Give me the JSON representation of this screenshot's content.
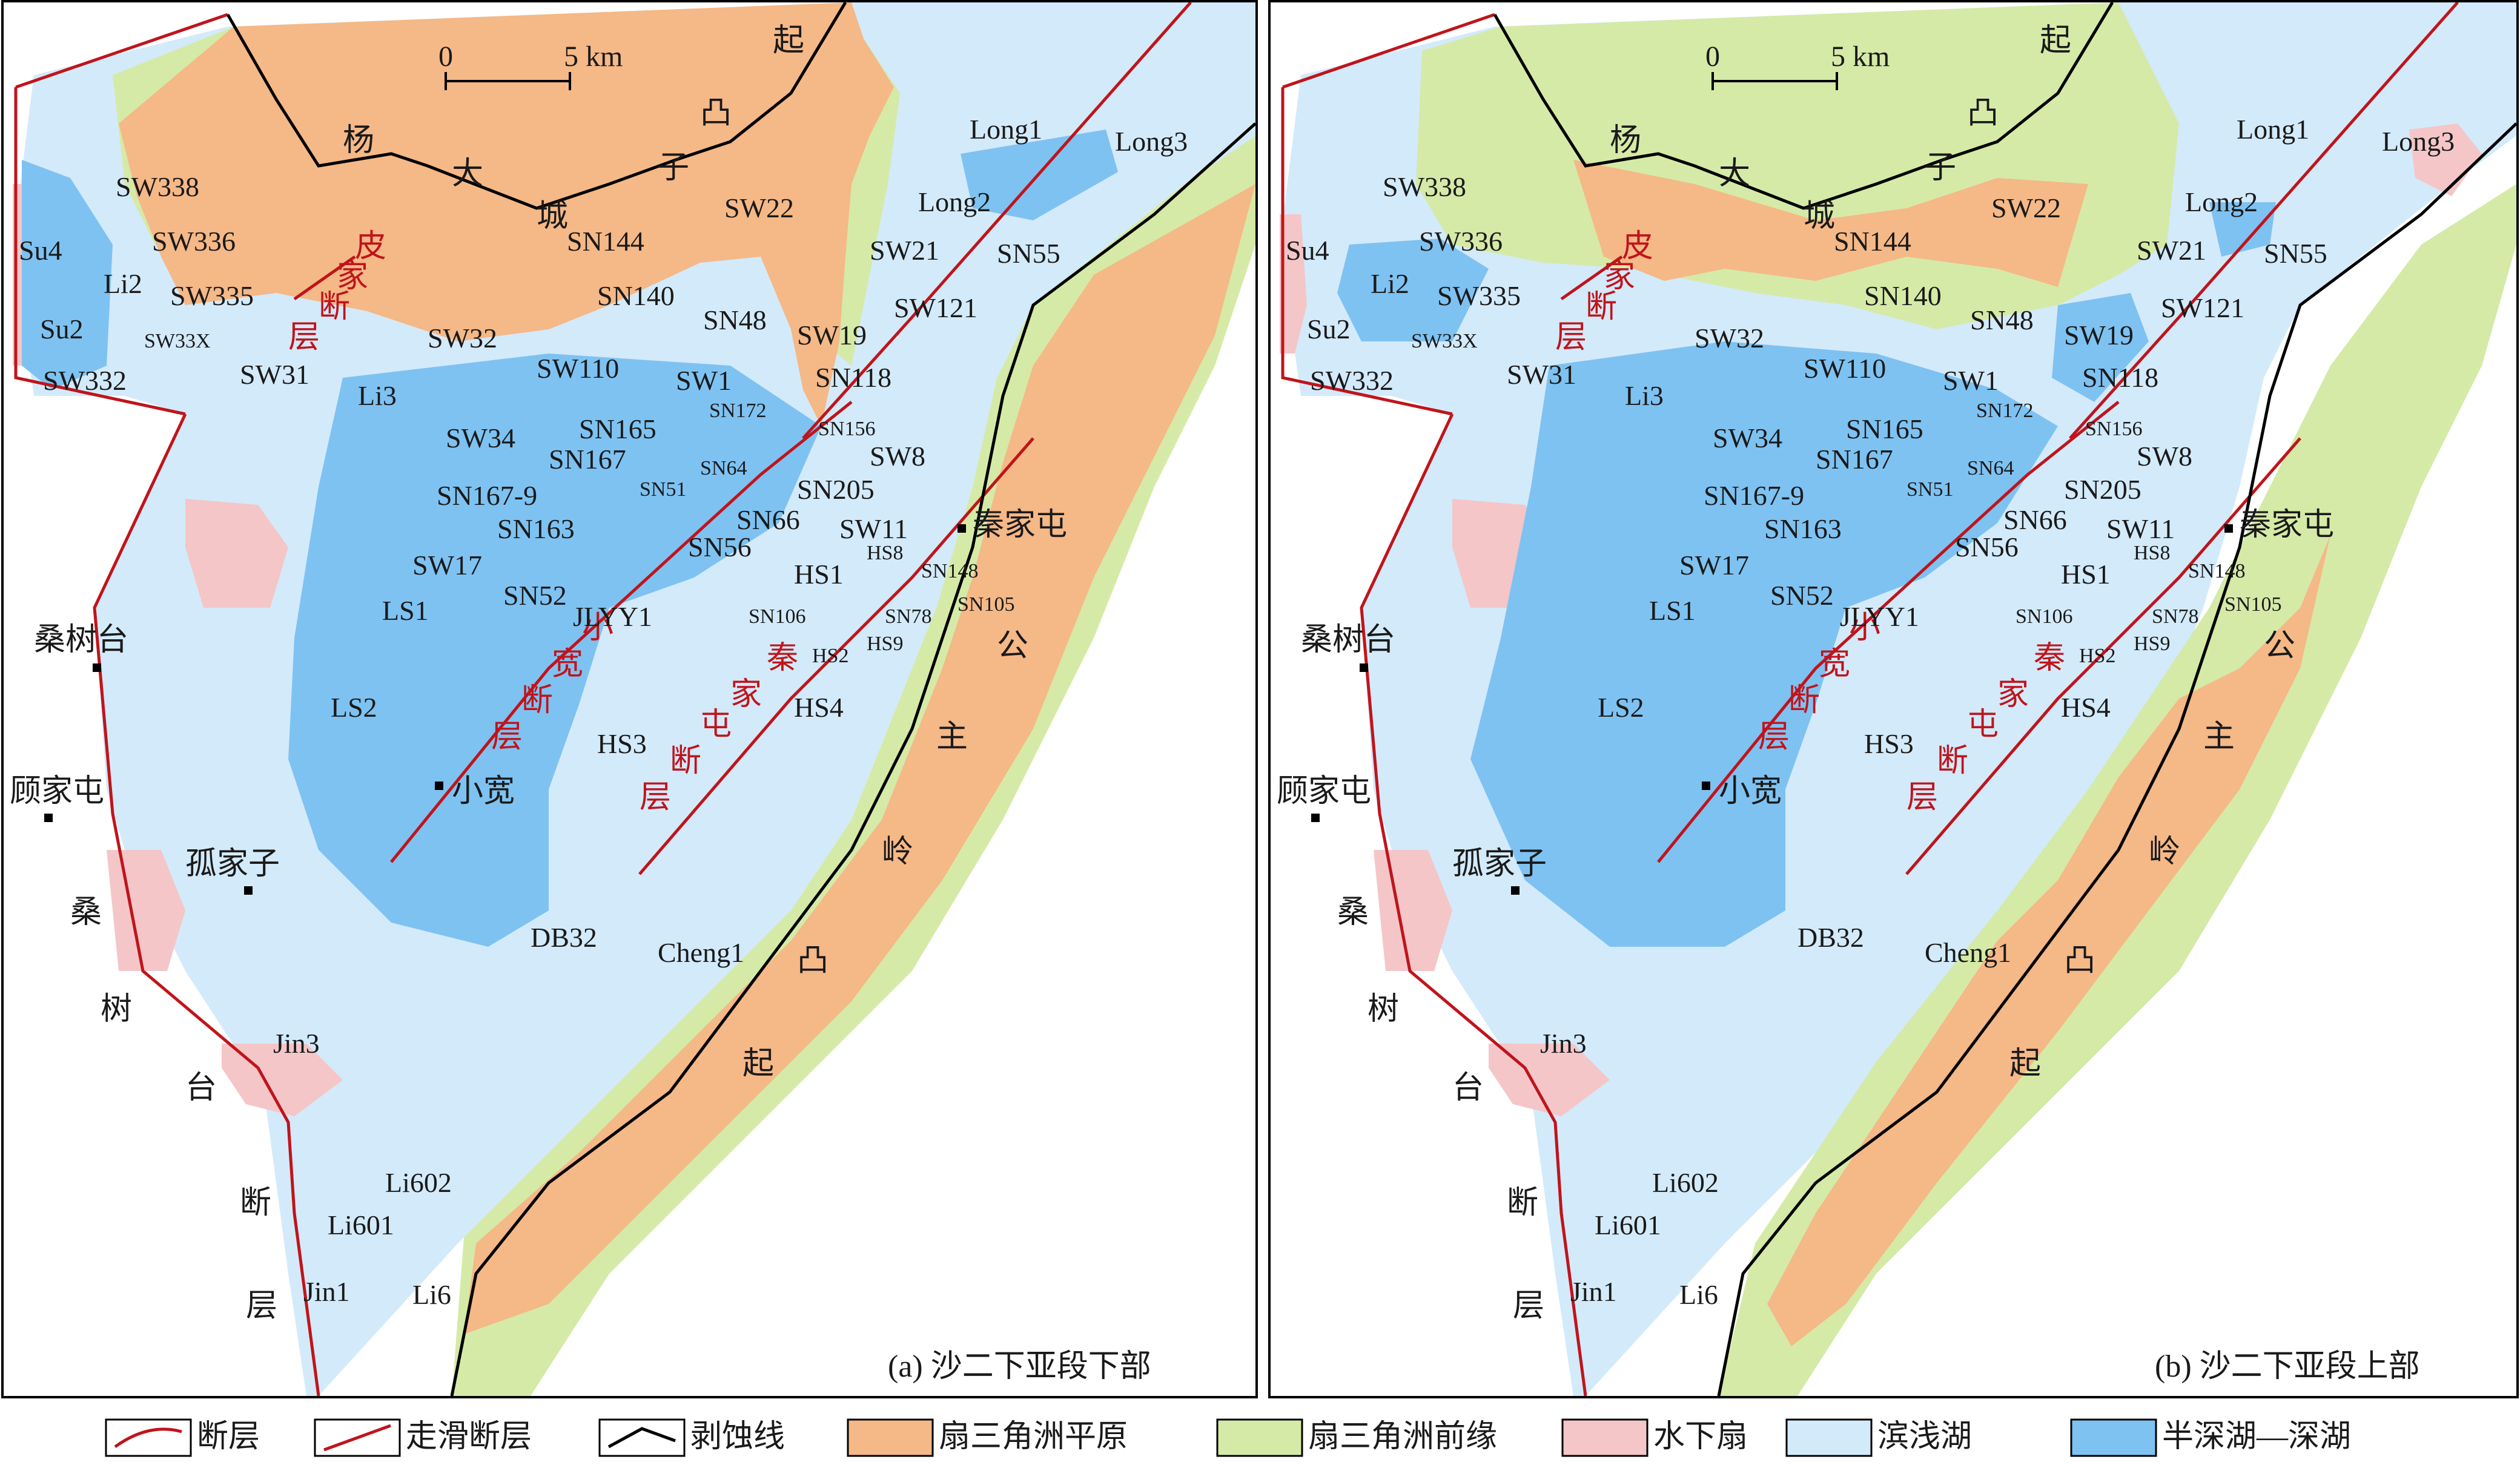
{
  "scale_bar": {
    "zero": "0",
    "five": "5 km"
  },
  "panels": [
    {
      "id": "a",
      "caption": "(a) 沙二下亚段下部"
    },
    {
      "id": "b",
      "caption": "(b) 沙二下亚段上部"
    }
  ],
  "uplift_labels": {
    "yangdacheng": [
      "杨",
      "大",
      "城",
      "子",
      "凸",
      "起"
    ],
    "gongzhu": [
      "公",
      "主",
      "岭",
      "凸",
      "起"
    ]
  },
  "fault_labels": {
    "pijia": [
      "皮",
      "家",
      "断",
      "层"
    ],
    "xiaokuan": [
      "小",
      "宽",
      "断",
      "层"
    ],
    "qinjiatun": [
      "秦",
      "家",
      "屯",
      "断",
      "层"
    ],
    "sangshutai": [
      "桑",
      "树",
      "台",
      "断",
      "层"
    ]
  },
  "towns": [
    "秦家屯",
    "桑树台",
    "顾家屯",
    "孤家子",
    "小宽"
  ],
  "wells": [
    "SW338",
    "SW336",
    "SW335",
    "SW33X",
    "SW332",
    "SW31",
    "SW32",
    "SW110",
    "SW34",
    "SW1",
    "SN172",
    "SN165",
    "SN167",
    "SN167-9",
    "SN51",
    "SN64",
    "SN205",
    "SN66",
    "SN163",
    "SN56",
    "SW17",
    "SN52",
    "LS1",
    "LS2",
    "JLYY1",
    "HS1",
    "HS8",
    "SN148",
    "SN106",
    "SN78",
    "SN105",
    "HS2",
    "HS9",
    "HS4",
    "HS3",
    "DB32",
    "Cheng1",
    "Jin3",
    "Li602",
    "Li601",
    "Jin1",
    "Li6",
    "Su4",
    "Li2",
    "Su2",
    "Li3",
    "SN144",
    "SN140",
    "SW22",
    "SN48",
    "SW19",
    "SN118",
    "SN156",
    "SW8",
    "SW11",
    "SW121",
    "SW21",
    "Long1",
    "Long2",
    "Long3",
    "SN55"
  ],
  "legend": [
    {
      "label": "断层",
      "type": "fault"
    },
    {
      "label": "走滑断层",
      "type": "strike-slip"
    },
    {
      "label": "剥蚀线",
      "type": "erosion"
    },
    {
      "label": "扇三角洲平原",
      "type": "fan-plain",
      "color": "#f5b887"
    },
    {
      "label": "扇三角洲前缘",
      "type": "fan-front",
      "color": "#d5eaa7"
    },
    {
      "label": "水下扇",
      "type": "subaqueous-fan",
      "color": "#f4c6c8"
    },
    {
      "label": "滨浅湖",
      "type": "shore-lake",
      "color": "#d3eafa"
    },
    {
      "label": "半深湖—深湖",
      "type": "deep-lake",
      "color": "#7ec2f2"
    }
  ]
}
